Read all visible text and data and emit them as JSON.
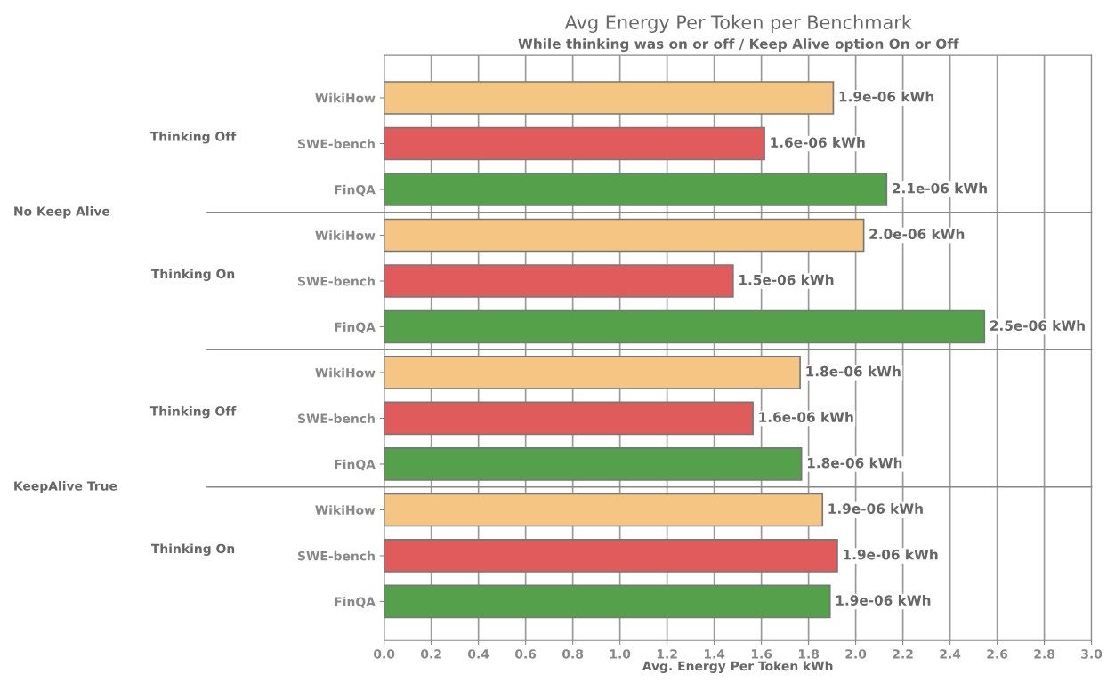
{
  "chart_data": {
    "type": "bar",
    "orientation": "horizontal",
    "title": "Avg Energy Per Token per Benchmark",
    "subtitle": "While thinking was on or off / Keep Alive option On or Off",
    "xlabel": "Avg. Energy Per Token kWh",
    "categories": [
      "WikiHow",
      "SWE-bench",
      "FinQA",
      "WikiHow",
      "SWE-bench",
      "FinQA",
      "WikiHow",
      "SWE-bench",
      "FinQA",
      "WikiHow",
      "SWE-bench",
      "FinQA"
    ],
    "values": [
      1.905,
      1.613,
      2.131,
      2.034,
      1.48,
      2.546,
      1.764,
      1.564,
      1.77,
      1.859,
      1.922,
      1.891
    ],
    "colors": [
      "#f5c583",
      "#e05c5c",
      "#55a04a",
      "#f5c583",
      "#e05c5c",
      "#55a04a",
      "#f5c583",
      "#e05c5c",
      "#55a04a",
      "#f5c583",
      "#e05c5c",
      "#55a04a"
    ],
    "value_labels": [
      "1.9e-06 kWh",
      "1.6e-06 kWh",
      "2.1e-06 kWh",
      "2.0e-06 kWh",
      "1.5e-06 kWh",
      "2.5e-06 kWh",
      "1.8e-06 kWh",
      "1.6e-06 kWh",
      "1.8e-06 kWh",
      "1.9e-06 kWh",
      "1.9e-06 kWh",
      "1.9e-06 kWh"
    ],
    "xlim": [
      0,
      3.0
    ],
    "xticks": [
      {
        "value": 0,
        "label": "0.0"
      },
      {
        "value": 0.2,
        "label": "0.2"
      },
      {
        "value": 0.4,
        "label": "0.4"
      },
      {
        "value": 0.6,
        "label": "0.6"
      },
      {
        "value": 0.8,
        "label": "0.8"
      },
      {
        "value": 1.0,
        "label": "1.0"
      },
      {
        "value": 1.2,
        "label": "1.2"
      },
      {
        "value": 1.4,
        "label": "1.4"
      },
      {
        "value": 1.6,
        "label": "1.6"
      },
      {
        "value": 1.8,
        "label": "1.8"
      },
      {
        "value": 2.0,
        "label": "2.0"
      },
      {
        "value": 2.2,
        "label": "2.2"
      },
      {
        "value": 2.4,
        "label": "2.4"
      },
      {
        "value": 2.6,
        "label": "2.6"
      },
      {
        "value": 2.8,
        "label": "2.8"
      },
      {
        "value": 3.0,
        "label": "3.0"
      }
    ],
    "grid": "x",
    "annotations": [
      "Thinking Off",
      "Thinking On",
      "Thinking Off",
      "Thinking On",
      "No Keep Alive",
      "KeepAlive True"
    ]
  }
}
